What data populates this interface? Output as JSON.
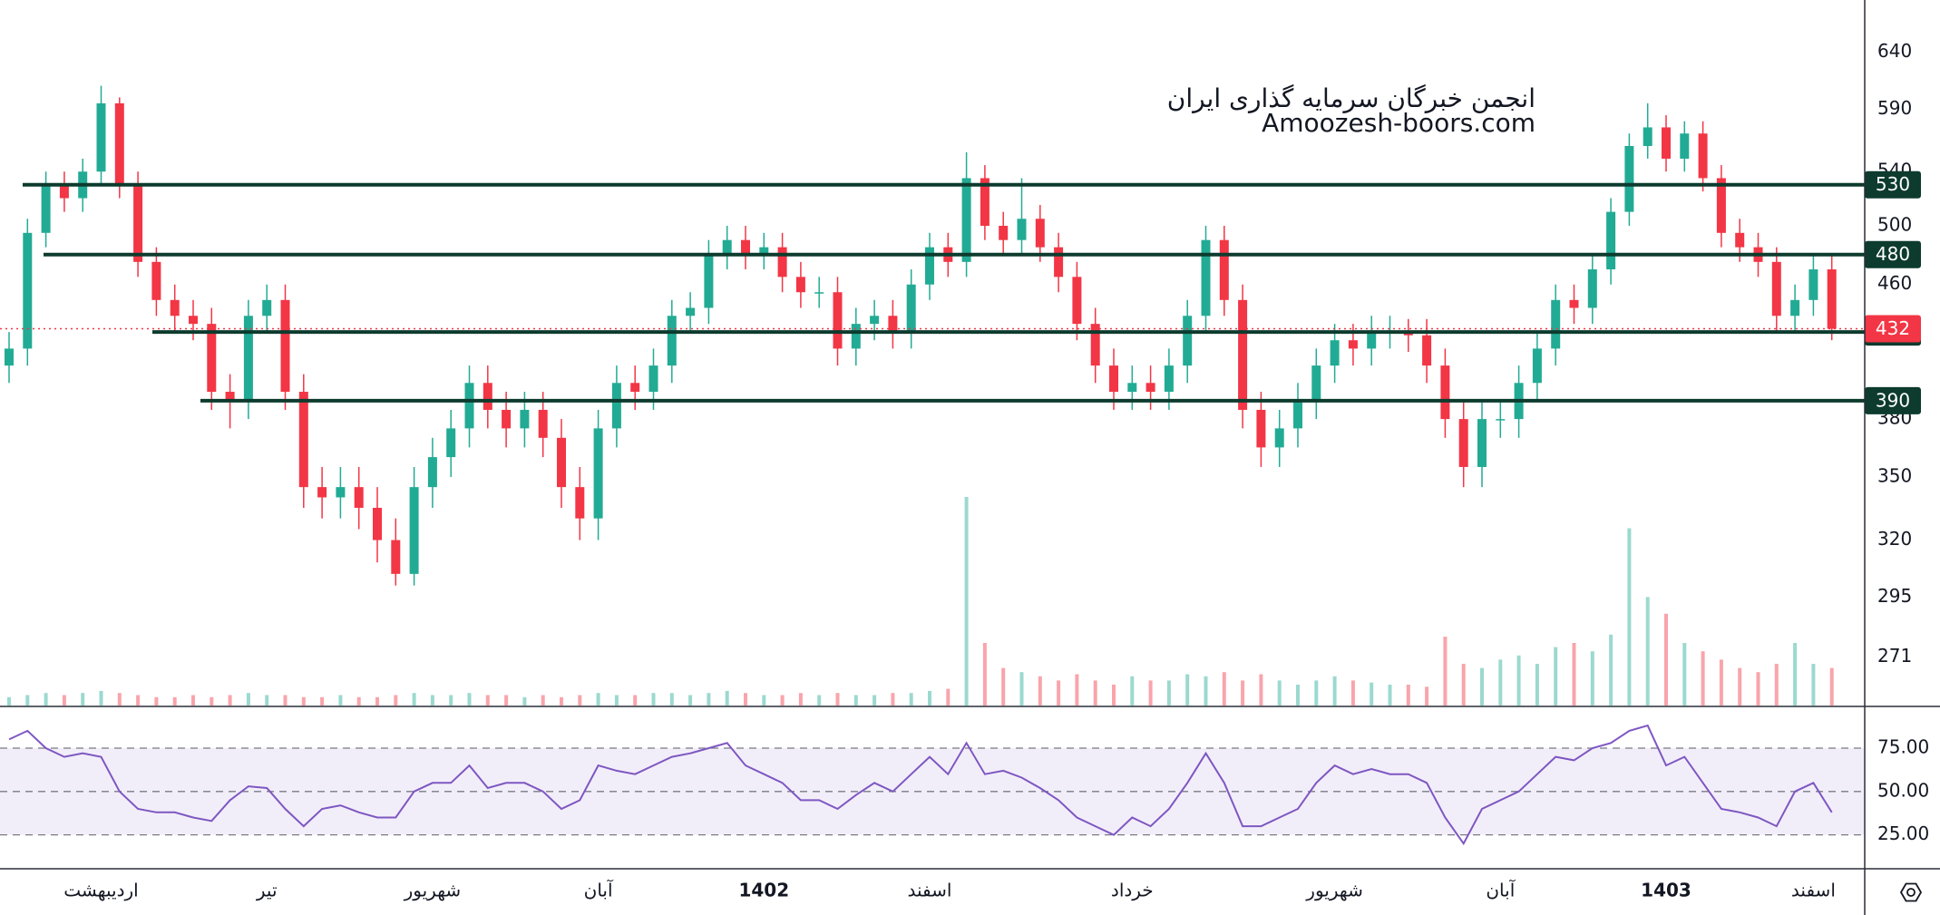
{
  "watermark": {
    "line1": "انجمن خبرگان سرمایه گذاری ایران",
    "line2": "Amoozesh-boors.com"
  },
  "chart_data": [
    {
      "type": "candlestick",
      "log": true,
      "ylim": [
        253,
        689
      ],
      "yticks": [
        640,
        590,
        540,
        500,
        460,
        380,
        350,
        320,
        295,
        271
      ],
      "up_color": "#22ab94",
      "down_color": "#f23645",
      "level_color": "#0d3b2e",
      "categories": [
        null,
        null,
        null,
        null,
        null,
        "اردیبهشت",
        null,
        null,
        null,
        null,
        null,
        null,
        null,
        null,
        "تیر",
        null,
        null,
        null,
        null,
        null,
        null,
        null,
        null,
        "شهریور",
        null,
        null,
        null,
        null,
        null,
        null,
        null,
        null,
        "آبان",
        null,
        null,
        null,
        null,
        null,
        null,
        null,
        null,
        "1402",
        null,
        null,
        null,
        null,
        null,
        null,
        null,
        null,
        "اسفند",
        null,
        null,
        null,
        null,
        null,
        null,
        null,
        null,
        null,
        null,
        "خرداد",
        null,
        null,
        null,
        null,
        null,
        null,
        null,
        null,
        null,
        null,
        "شهریور",
        null,
        null,
        null,
        null,
        null,
        null,
        null,
        null,
        "آبان",
        null,
        null,
        null,
        null,
        null,
        null,
        null,
        null,
        "1403",
        null,
        null,
        null,
        null,
        null,
        null,
        null,
        "اسفند",
        null
      ],
      "open": [
        410,
        420,
        495,
        530,
        520,
        540,
        595,
        530,
        475,
        450,
        440,
        435,
        395,
        390,
        440,
        450,
        395,
        345,
        340,
        345,
        335,
        320,
        305,
        345,
        360,
        375,
        400,
        385,
        375,
        385,
        370,
        345,
        330,
        375,
        400,
        395,
        410,
        440,
        445,
        480,
        490,
        480,
        485,
        465,
        455,
        455,
        420,
        435,
        440,
        430,
        460,
        485,
        475,
        535,
        500,
        490,
        505,
        485,
        465,
        435,
        410,
        395,
        400,
        395,
        410,
        440,
        490,
        450,
        385,
        365,
        375,
        390,
        410,
        425,
        420,
        430,
        430,
        428,
        410,
        380,
        355,
        380,
        380,
        400,
        420,
        450,
        445,
        470,
        510,
        560,
        575,
        550,
        570,
        535,
        495,
        485,
        475,
        440,
        450,
        470
      ],
      "high": [
        430,
        505,
        540,
        540,
        550,
        610,
        600,
        540,
        485,
        460,
        450,
        445,
        405,
        450,
        460,
        460,
        405,
        355,
        355,
        355,
        345,
        330,
        355,
        370,
        385,
        410,
        410,
        395,
        395,
        395,
        380,
        355,
        385,
        410,
        410,
        420,
        450,
        455,
        490,
        500,
        500,
        495,
        495,
        475,
        465,
        465,
        445,
        450,
        450,
        470,
        495,
        495,
        555,
        545,
        510,
        535,
        515,
        495,
        475,
        445,
        420,
        410,
        410,
        420,
        450,
        500,
        500,
        460,
        395,
        385,
        400,
        420,
        435,
        435,
        440,
        440,
        438,
        438,
        420,
        390,
        390,
        390,
        410,
        430,
        460,
        460,
        480,
        520,
        570,
        595,
        585,
        580,
        580,
        545,
        505,
        495,
        485,
        460,
        480,
        480
      ],
      "low": [
        400,
        410,
        485,
        510,
        510,
        530,
        520,
        465,
        440,
        430,
        425,
        385,
        375,
        380,
        430,
        385,
        335,
        330,
        330,
        325,
        310,
        300,
        300,
        335,
        350,
        365,
        375,
        365,
        365,
        360,
        335,
        320,
        320,
        365,
        385,
        385,
        400,
        430,
        435,
        470,
        470,
        470,
        455,
        445,
        445,
        410,
        410,
        425,
        420,
        420,
        450,
        465,
        465,
        490,
        480,
        480,
        475,
        455,
        425,
        400,
        385,
        385,
        385,
        385,
        400,
        430,
        440,
        375,
        355,
        355,
        365,
        380,
        400,
        410,
        410,
        420,
        418,
        400,
        370,
        345,
        345,
        370,
        370,
        390,
        410,
        435,
        435,
        460,
        500,
        550,
        540,
        540,
        525,
        485,
        475,
        465,
        430,
        430,
        440,
        425
      ],
      "close": [
        420,
        495,
        530,
        520,
        540,
        595,
        530,
        475,
        450,
        440,
        435,
        395,
        390,
        440,
        450,
        395,
        345,
        340,
        345,
        335,
        320,
        305,
        345,
        360,
        375,
        400,
        385,
        375,
        385,
        370,
        345,
        330,
        375,
        400,
        395,
        410,
        440,
        445,
        480,
        490,
        480,
        485,
        465,
        455,
        455,
        420,
        435,
        440,
        430,
        460,
        485,
        475,
        535,
        500,
        490,
        505,
        485,
        465,
        435,
        410,
        395,
        400,
        395,
        410,
        440,
        490,
        450,
        385,
        365,
        375,
        390,
        410,
        425,
        420,
        430,
        430,
        428,
        410,
        380,
        355,
        380,
        380,
        400,
        420,
        450,
        445,
        470,
        510,
        560,
        575,
        550,
        570,
        535,
        495,
        485,
        475,
        440,
        450,
        470,
        432
      ],
      "volume": [
        4,
        5,
        6,
        5,
        6,
        7,
        6,
        5,
        4,
        4,
        5,
        4,
        5,
        6,
        5,
        5,
        4,
        4,
        5,
        4,
        4,
        5,
        6,
        5,
        5,
        6,
        5,
        5,
        4,
        5,
        4,
        5,
        6,
        5,
        5,
        6,
        6,
        5,
        6,
        7,
        6,
        5,
        5,
        6,
        5,
        6,
        5,
        5,
        6,
        6,
        7,
        8,
        100,
        30,
        18,
        16,
        14,
        12,
        15,
        12,
        10,
        14,
        12,
        12,
        15,
        14,
        16,
        12,
        15,
        12,
        10,
        12,
        14,
        12,
        11,
        10,
        10,
        9,
        33,
        20,
        18,
        22,
        24,
        20,
        28,
        30,
        26,
        34,
        85,
        52,
        44,
        30,
        26,
        22,
        18,
        16,
        20,
        30,
        20,
        18
      ],
      "levels": [
        530,
        480,
        430,
        390
      ],
      "last_price": 432
    },
    {
      "type": "line",
      "name": "RSI",
      "color": "#7e57c2",
      "ylim": [
        6,
        98
      ],
      "yticks": [
        {
          "value": 75,
          "label": "75.00"
        },
        {
          "value": 50,
          "label": "50.00"
        },
        {
          "value": 25,
          "label": "25.00"
        }
      ],
      "values": [
        80,
        85,
        75,
        70,
        72,
        70,
        50,
        40,
        38,
        38,
        35,
        33,
        45,
        53,
        52,
        40,
        30,
        40,
        42,
        38,
        35,
        35,
        50,
        55,
        55,
        65,
        52,
        55,
        55,
        50,
        40,
        45,
        65,
        62,
        60,
        65,
        70,
        72,
        75,
        78,
        65,
        60,
        55,
        45,
        45,
        40,
        48,
        55,
        50,
        60,
        70,
        60,
        78,
        60,
        62,
        58,
        52,
        45,
        35,
        30,
        25,
        35,
        30,
        40,
        55,
        72,
        55,
        30,
        30,
        35,
        40,
        55,
        65,
        60,
        63,
        60,
        60,
        55,
        35,
        20,
        40,
        45,
        50,
        60,
        70,
        68,
        75,
        78,
        85,
        88,
        65,
        70,
        55,
        40,
        38,
        35,
        30,
        50,
        55,
        38
      ]
    }
  ]
}
